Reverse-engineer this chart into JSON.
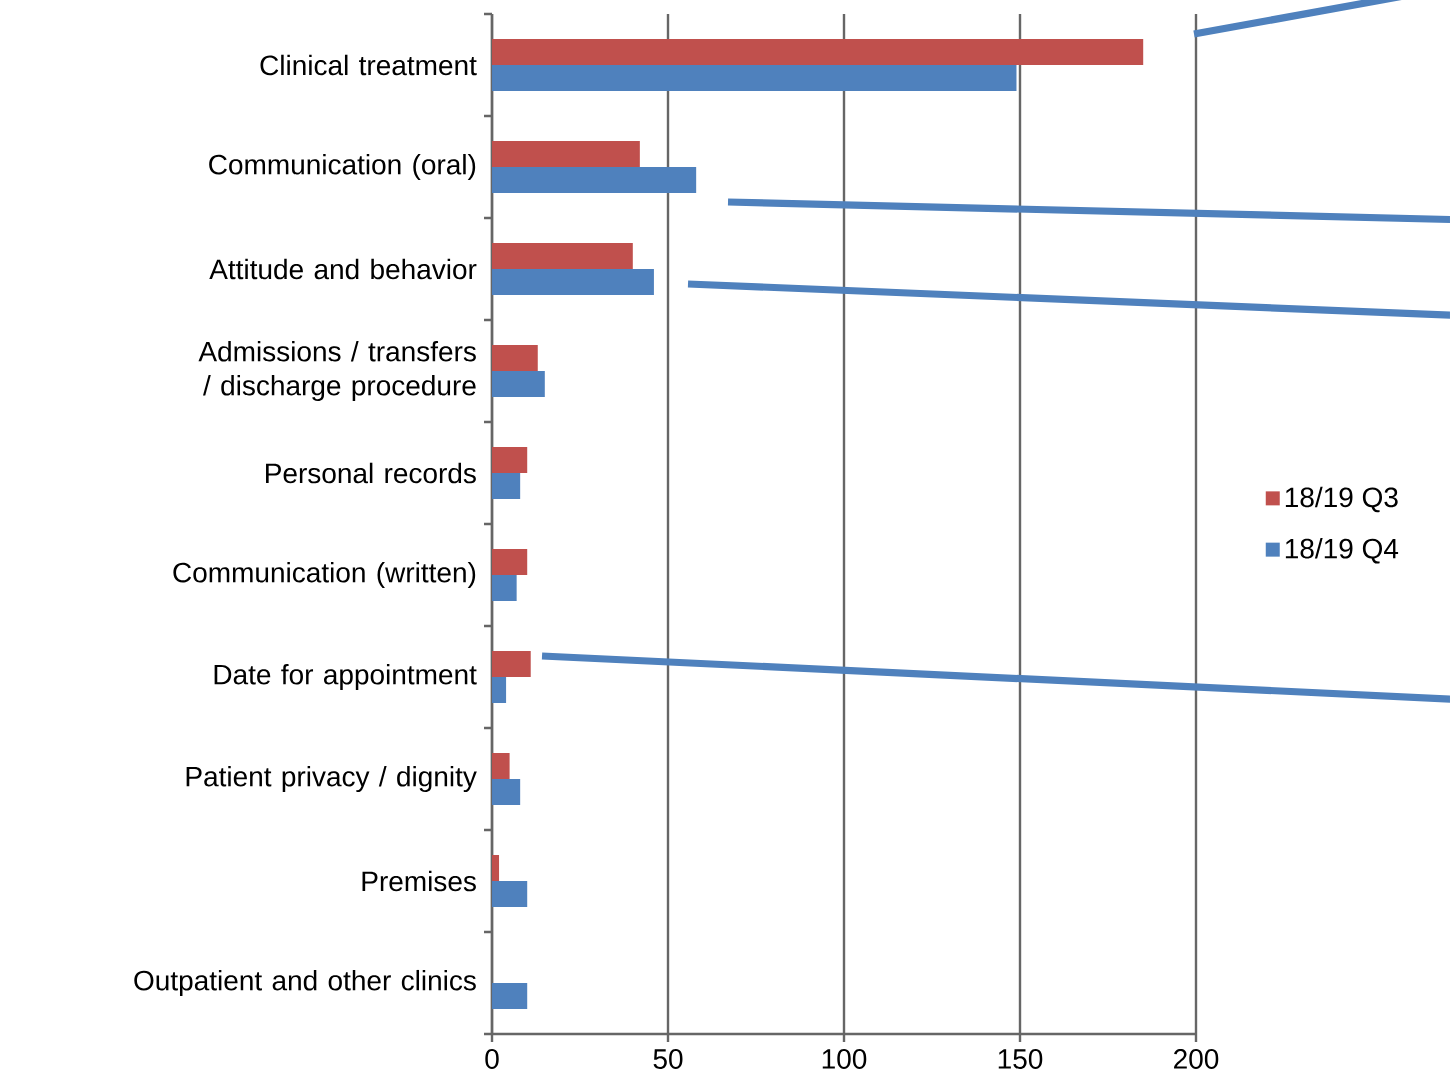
{
  "chart_data": {
    "type": "bar",
    "orientation": "horizontal",
    "categories": [
      "Clinical treatment",
      "Communication (oral)",
      "Attitude and behavior",
      "Admissions / transfers / discharge procedure",
      "Personal records",
      "Communication (written)",
      "Date for appointment",
      "Patient privacy / dignity",
      "Premises",
      "Outpatient and other clinics"
    ],
    "series": [
      {
        "name": "18/19 Q3",
        "color": "#c0504d",
        "values": [
          185,
          42,
          40,
          13,
          10,
          10,
          11,
          5,
          2,
          0
        ]
      },
      {
        "name": "18/19 Q4",
        "color": "#4f81bd",
        "values": [
          149,
          58,
          46,
          15,
          8,
          7,
          4,
          8,
          10,
          10
        ]
      }
    ],
    "xlim": [
      0,
      200
    ],
    "xticks": [
      0,
      50,
      100,
      150,
      200
    ],
    "grid": "x",
    "legend": "right"
  }
}
